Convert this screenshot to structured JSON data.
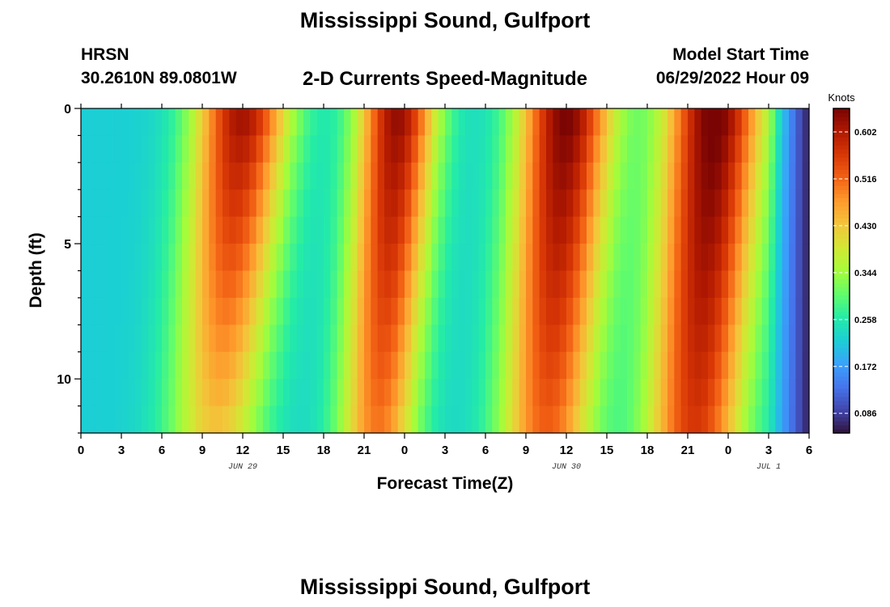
{
  "header": {
    "title": "Mississippi Sound, Gulfport",
    "station": "HRSN",
    "coords": "30.2610N  89.0801W",
    "product": "2-D Currents Speed-Magnitude",
    "run_label": "Model Start Time",
    "run_value": "06/29/2022 Hour 09"
  },
  "footer": {
    "next_title": "Mississippi Sound, Gulfport"
  },
  "chart_data": {
    "type": "heatmap",
    "title": "2-D Currents Speed-Magnitude",
    "xlabel": "Forecast Time(Z)",
    "ylabel": "Depth (ft)",
    "x_ticks": [
      "0",
      "3",
      "6",
      "9",
      "12",
      "15",
      "18",
      "21",
      "0",
      "3",
      "6",
      "9",
      "12",
      "15",
      "18",
      "21",
      "0",
      "3",
      "6"
    ],
    "x_range_hours": [
      0,
      54
    ],
    "date_labels": [
      {
        "text": "JUN 29",
        "hour": 12
      },
      {
        "text": "JUN 30",
        "hour": 36
      },
      {
        "text": "JUL 1",
        "hour": 51
      }
    ],
    "y_ticks": [
      0,
      5,
      10
    ],
    "y_range_ft": [
      0,
      12
    ],
    "depth_levels_ft": [
      0.5,
      1.5,
      2.5,
      3.5,
      4.5,
      5.5,
      6.5,
      7.5,
      8.5,
      9.5,
      10.5,
      11.5
    ],
    "profile_peaks": [
      {
        "hour": 12.0,
        "width_h": 3.6,
        "top_speed": 0.62,
        "bottom_speed": 0.43,
        "top_shift_h": 0.0,
        "bottom_shift_h": -2.0
      },
      {
        "hour": 23.5,
        "width_h": 3.0,
        "top_speed": 0.63,
        "bottom_speed": 0.5,
        "top_shift_h": 0.0,
        "bottom_shift_h": -1.5
      },
      {
        "hour": 36.0,
        "width_h": 3.6,
        "top_speed": 0.65,
        "bottom_speed": 0.52,
        "top_shift_h": 0.0,
        "bottom_shift_h": -1.5
      },
      {
        "hour": 47.0,
        "width_h": 3.8,
        "top_speed": 0.66,
        "bottom_speed": 0.56,
        "top_shift_h": 0.0,
        "bottom_shift_h": -1.5
      }
    ],
    "profile_base_speed": 0.22,
    "profile_end_speed": 0.06,
    "colorbar": {
      "unit": "Knots",
      "min": 0.05,
      "max": 0.645,
      "ticks": [
        0.086,
        0.172,
        0.258,
        0.344,
        0.43,
        0.516,
        0.602
      ],
      "colors": [
        "#30123b",
        "#4145ab",
        "#4675ed",
        "#39a2fc",
        "#1bcfd4",
        "#24eca6",
        "#61fc6c",
        "#a4fc3b",
        "#d1e834",
        "#f3c63a",
        "#fe9b2d",
        "#f36315",
        "#d93806",
        "#b11901",
        "#7a0403"
      ]
    }
  }
}
